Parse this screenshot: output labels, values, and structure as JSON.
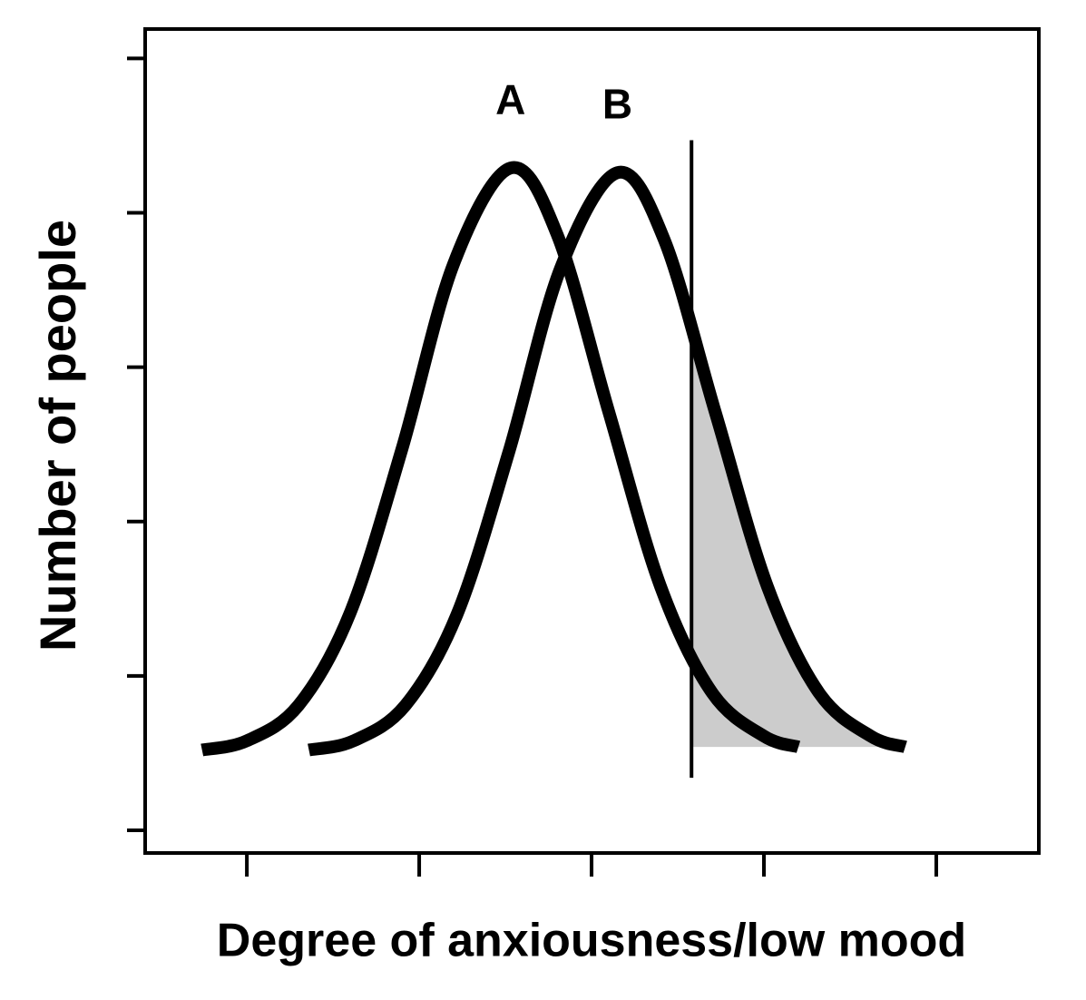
{
  "chart_data": {
    "type": "line",
    "xlabel": "Degree of anxiousness/low mood",
    "ylabel": "Number of people",
    "xlim": [
      0.41,
      5.595
    ],
    "ylim": [
      -0.147,
      5.19
    ],
    "xticks": [
      1,
      2,
      3,
      4,
      5
    ],
    "yticks": [
      0,
      1,
      2,
      3,
      4,
      5
    ],
    "series": [
      {
        "name": "A",
        "color": "#000000",
        "x": [
          0.74,
          1.0,
          1.3,
          1.6,
          1.9,
          2.2,
          2.53,
          2.8,
          3.1,
          3.4,
          3.7,
          4.0,
          4.2
        ],
        "values": [
          0.52,
          0.58,
          0.81,
          1.41,
          2.47,
          3.67,
          4.29,
          3.86,
          2.71,
          1.58,
          0.89,
          0.61,
          0.54
        ]
      },
      {
        "name": "B",
        "color": "#000000",
        "x": [
          1.36,
          1.62,
          1.92,
          2.22,
          2.52,
          2.82,
          3.15,
          3.42,
          3.72,
          4.02,
          4.32,
          4.62,
          4.82
        ],
        "values": [
          0.52,
          0.58,
          0.81,
          1.4,
          2.45,
          3.64,
          4.26,
          3.83,
          2.7,
          1.58,
          0.89,
          0.61,
          0.54
        ]
      }
    ],
    "threshold": {
      "x": 3.58,
      "y": [
        0.34,
        4.47
      ],
      "shade_color": "#cccccc"
    }
  }
}
